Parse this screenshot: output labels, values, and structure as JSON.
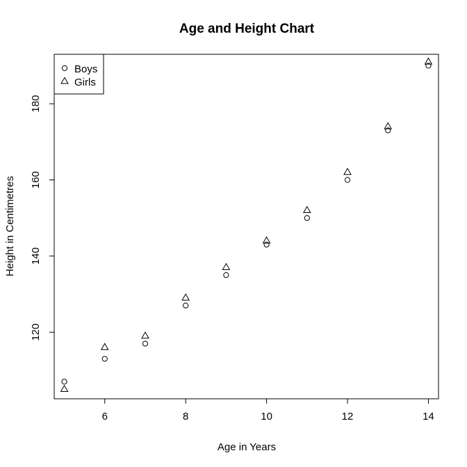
{
  "chart_data": {
    "type": "scatter",
    "title": "Age and Height Chart",
    "xlabel": "Age in Years",
    "ylabel": "Height in Centimetres",
    "xlim": [
      4.75,
      14.25
    ],
    "ylim": [
      102.5,
      193
    ],
    "x_ticks": [
      6,
      8,
      10,
      12,
      14
    ],
    "y_ticks": [
      120,
      140,
      160,
      180
    ],
    "grid": false,
    "legend_position": "top-left",
    "series": [
      {
        "name": "Boys",
        "marker": "circle",
        "x": [
          5,
          6,
          7,
          8,
          9,
          10,
          11,
          12,
          13,
          14
        ],
        "y": [
          107,
          113,
          117,
          127,
          135,
          143,
          150,
          160,
          173,
          190
        ]
      },
      {
        "name": "Girls",
        "marker": "triangle",
        "x": [
          5,
          6,
          7,
          8,
          9,
          10,
          11,
          12,
          13,
          14
        ],
        "y": [
          105,
          116,
          119,
          129,
          137,
          144,
          152,
          162,
          174,
          191
        ]
      }
    ]
  }
}
